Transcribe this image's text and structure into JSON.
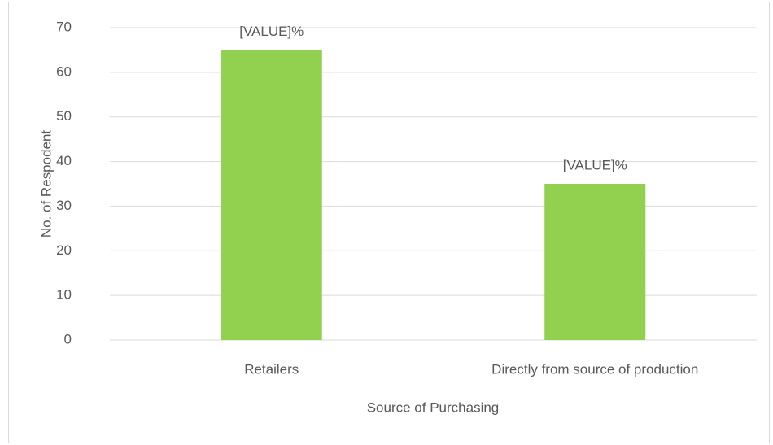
{
  "chart_data": {
    "type": "bar",
    "categories": [
      "Retailers",
      "Directly from source of production"
    ],
    "values": [
      65,
      35
    ],
    "value_labels": [
      "[VALUE]%",
      "[VALUE]%"
    ],
    "color": "#92d050",
    "x_label": "Source of Purchasing",
    "y_label": "No. of Respodent",
    "ylim": [
      0,
      70
    ],
    "yticks": [
      0,
      10,
      20,
      30,
      40,
      50,
      60,
      70
    ],
    "grid": true
  }
}
